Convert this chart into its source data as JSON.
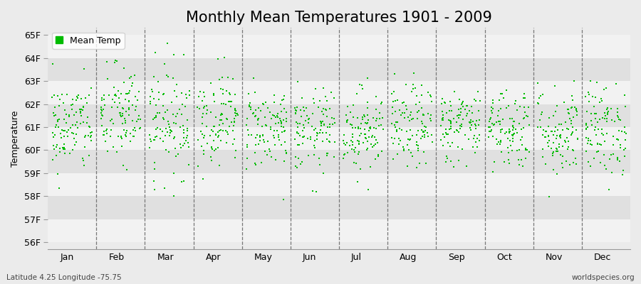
{
  "title": "Monthly Mean Temperatures 1901 - 2009",
  "ylabel": "Temperature",
  "xlabel_labels": [
    "Jan",
    "Feb",
    "Mar",
    "Apr",
    "May",
    "Jun",
    "Jul",
    "Aug",
    "Sep",
    "Oct",
    "Nov",
    "Dec"
  ],
  "ytick_labels": [
    "56F",
    "57F",
    "58F",
    "59F",
    "60F",
    "61F",
    "62F",
    "63F",
    "64F",
    "65F"
  ],
  "ytick_values": [
    56,
    57,
    58,
    59,
    60,
    61,
    62,
    63,
    64,
    65
  ],
  "ylim": [
    55.7,
    65.3
  ],
  "xlim": [
    -0.5,
    11.5
  ],
  "background_color": "#ebebeb",
  "band_color_light": "#f2f2f2",
  "band_color_dark": "#e0e0e0",
  "marker_color": "#00bb00",
  "marker": "s",
  "marker_size": 2,
  "legend_label": "Mean Temp",
  "bottom_left_text": "Latitude 4.25 Longitude -75.75",
  "bottom_right_text": "worldspecies.org",
  "title_fontsize": 15,
  "label_fontsize": 9,
  "tick_fontsize": 9,
  "seed": 42,
  "n_years": 109,
  "monthly_means": [
    61.0,
    61.5,
    61.3,
    61.4,
    61.0,
    60.8,
    60.9,
    61.0,
    61.1,
    61.0,
    60.8,
    60.9
  ],
  "monthly_stds": [
    1.0,
    1.1,
    1.2,
    1.0,
    0.9,
    0.9,
    0.9,
    0.9,
    0.8,
    0.9,
    1.0,
    1.0
  ]
}
